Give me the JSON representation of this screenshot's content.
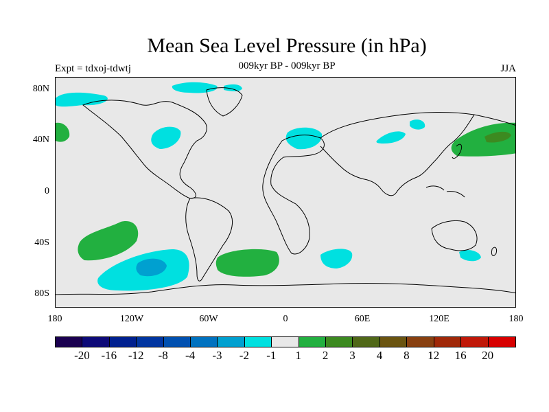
{
  "title": "Mean Sea Level Pressure (in hPa)",
  "subtitle": "009kyr BP - 009kyr BP",
  "left_label": "Expt = tdxoj-tdwtj",
  "season_label": "JJA",
  "y_ticks": [
    "80N",
    "40N",
    "0",
    "40S",
    "80S"
  ],
  "x_ticks": [
    "180",
    "120W",
    "60W",
    "0",
    "60E",
    "120E",
    "180"
  ],
  "colorbar": {
    "colors": [
      "#1a0050",
      "#0d0a78",
      "#00208f",
      "#0035a0",
      "#0050b0",
      "#0072c0",
      "#00a0d0",
      "#00e0e0",
      "#e8e8e8",
      "#22b040",
      "#3c8a20",
      "#506818",
      "#6a5410",
      "#884010",
      "#a02808",
      "#c01808",
      "#d80000"
    ],
    "labels": [
      "-20",
      "-16",
      "-12",
      "-8",
      "-4",
      "-3",
      "-2",
      "-1",
      "1",
      "2",
      "3",
      "4",
      "8",
      "12",
      "16",
      "20"
    ]
  },
  "map_data": {
    "type": "filled-contour-map",
    "projection": "cylindrical-equidistant",
    "lon_range": [
      -180,
      180
    ],
    "lat_range": [
      -90,
      90
    ],
    "background_value_range": [
      -1,
      1
    ]
  }
}
